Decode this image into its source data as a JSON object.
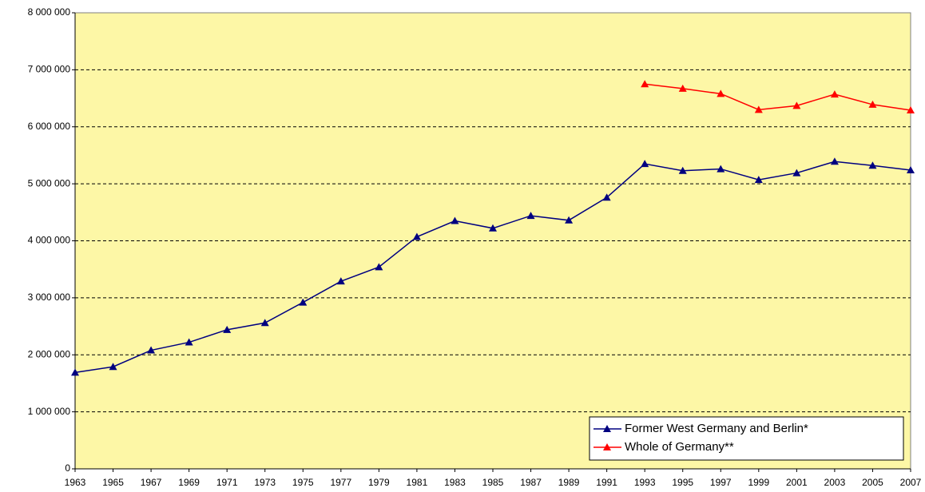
{
  "chart_data": {
    "type": "line",
    "categories": [
      "1963",
      "1965",
      "1967",
      "1969",
      "1971",
      "1973",
      "1975",
      "1977",
      "1979",
      "1981",
      "1983",
      "1985",
      "1987",
      "1989",
      "1991",
      "1993",
      "1995",
      "1997",
      "1999",
      "2001",
      "2003",
      "2005",
      "2007"
    ],
    "series": [
      {
        "name": "Former West Germany and Berlin*",
        "color": "#000080",
        "values": [
          1690000,
          1790000,
          2080000,
          2220000,
          2440000,
          2560000,
          2920000,
          3290000,
          3540000,
          4070000,
          4350000,
          4220000,
          4440000,
          4360000,
          4760000,
          5350000,
          5230000,
          5260000,
          5070000,
          5190000,
          5390000,
          5320000,
          5240000
        ]
      },
      {
        "name": "Whole of Germany**",
        "color": "#ff0000",
        "values": [
          null,
          null,
          null,
          null,
          null,
          null,
          null,
          null,
          null,
          null,
          null,
          null,
          null,
          null,
          null,
          6750000,
          6670000,
          6580000,
          6300000,
          6370000,
          6570000,
          6390000,
          6290000
        ]
      }
    ],
    "ylim": [
      0,
      8000000
    ],
    "yticks": [
      0,
      {
        "value": 1000000,
        "label": "1 000 000"
      },
      {
        "value": 2000000,
        "label": "2 000 000"
      },
      {
        "value": 3000000,
        "label": "3 000 000"
      },
      {
        "value": 4000000,
        "label": "4 000 000"
      },
      {
        "value": 5000000,
        "label": "5 000 000"
      },
      {
        "value": 6000000,
        "label": "6 000 000"
      },
      {
        "value": 7000000,
        "label": "7 000 000"
      },
      {
        "value": 8000000,
        "label": "8 000 000"
      }
    ],
    "grid": true,
    "background": "#fdf7a6",
    "legend": "lower right"
  }
}
